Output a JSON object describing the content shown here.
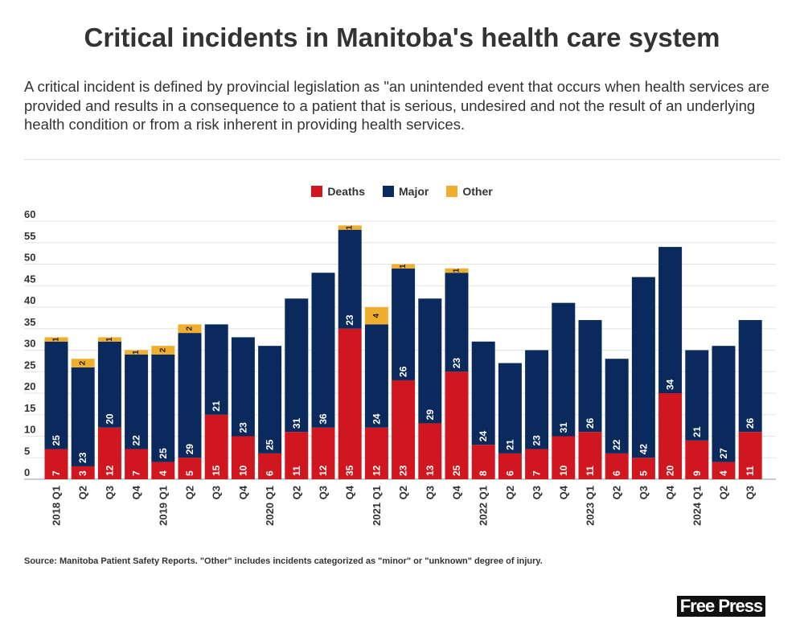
{
  "title": "Critical incidents in Manitoba's health care system",
  "description": "A critical incident is defined by provincial legislation as \"an unintended event that occurs when health services are provided and results in a consequence to a patient that is serious, undesired and not the result of an underlying health condition or from a risk inherent in providing health services.",
  "source": "Source: Manitoba Patient Safety Reports.  \"Other\" includes incidents categorized as \"minor\" or \"unknown\" degree of injury.",
  "logo": "Free Press",
  "chart_data": {
    "type": "bar",
    "stacked": true,
    "legend_position": "top",
    "grid": true,
    "ylim": [
      0,
      60
    ],
    "yticks": [
      0,
      5,
      10,
      15,
      20,
      25,
      30,
      35,
      40,
      45,
      50,
      55,
      60
    ],
    "categories": [
      "2018 Q1",
      "Q2",
      "Q3",
      "Q4",
      "2019 Q1",
      "Q2",
      "Q3",
      "Q4",
      "2020 Q1",
      "Q2",
      "Q3",
      "Q4",
      "2021 Q1",
      "Q2",
      "Q3",
      "Q4",
      "2022 Q1",
      "Q2",
      "Q3",
      "Q4",
      "2023 Q1",
      "Q2",
      "Q3",
      "Q4",
      "2024 Q1",
      "Q2",
      "Q3"
    ],
    "series": [
      {
        "name": "Deaths",
        "color": "#d0161e",
        "values": [
          7,
          3,
          12,
          7,
          4,
          5,
          15,
          10,
          6,
          11,
          12,
          35,
          12,
          23,
          13,
          25,
          8,
          6,
          7,
          10,
          11,
          6,
          5,
          20,
          9,
          4,
          11
        ]
      },
      {
        "name": "Major",
        "color": "#0a2a5e",
        "values": [
          25,
          23,
          20,
          22,
          25,
          29,
          21,
          23,
          25,
          31,
          36,
          23,
          24,
          26,
          29,
          23,
          24,
          21,
          23,
          31,
          26,
          22,
          42,
          34,
          21,
          27,
          26
        ]
      },
      {
        "name": "Other",
        "color": "#f0ae2e",
        "values": [
          1,
          2,
          1,
          1,
          2,
          2,
          0,
          0,
          0,
          0,
          0,
          1,
          4,
          1,
          0,
          1,
          0,
          0,
          0,
          0,
          0,
          0,
          0,
          0,
          0,
          0,
          0
        ]
      }
    ]
  }
}
